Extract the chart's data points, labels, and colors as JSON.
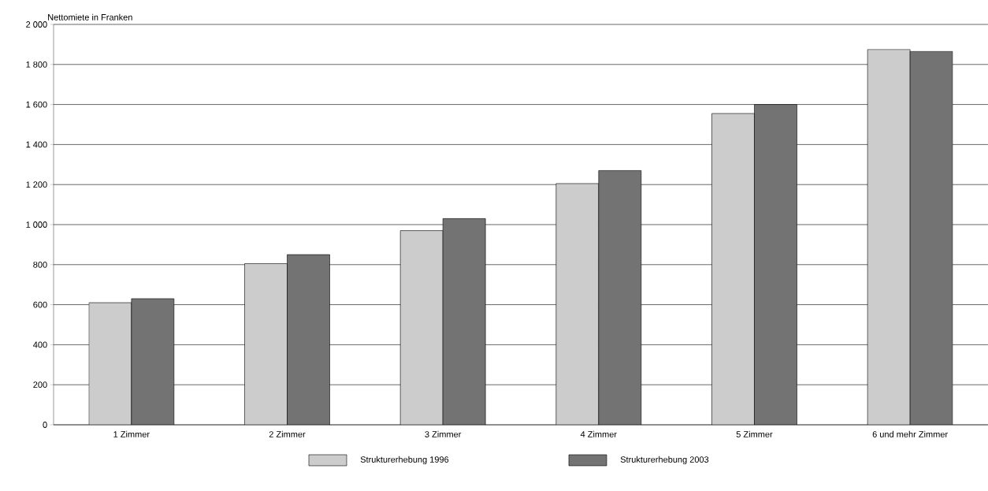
{
  "chart_data": {
    "type": "bar",
    "ylabel": "Nettomiete in Franken",
    "categories": [
      "1 Zimmer",
      "2 Zimmer",
      "3 Zimmer",
      "4 Zimmer",
      "5 Zimmer",
      "6 und mehr Zimmer"
    ],
    "series": [
      {
        "name": "Strukturerhebung 1996",
        "color": "#cccccc",
        "values": [
          610,
          805,
          970,
          1205,
          1555,
          1875
        ]
      },
      {
        "name": "Strukturerhebung 2003",
        "color": "#737373",
        "values": [
          630,
          850,
          1030,
          1270,
          1600,
          1865
        ]
      }
    ],
    "ylim": [
      0,
      2000
    ],
    "yticks": [
      0,
      200,
      400,
      600,
      800,
      {
        "value": 1000,
        "label": "1 000"
      },
      {
        "value": 1200,
        "label": "1 200"
      },
      {
        "value": 1400,
        "label": "1 400"
      },
      {
        "value": 1600,
        "label": "1 600"
      },
      {
        "value": 1800,
        "label": "1 800"
      },
      {
        "value": 2000,
        "label": "2 000"
      }
    ],
    "grid": "y",
    "legend": "bottom"
  }
}
